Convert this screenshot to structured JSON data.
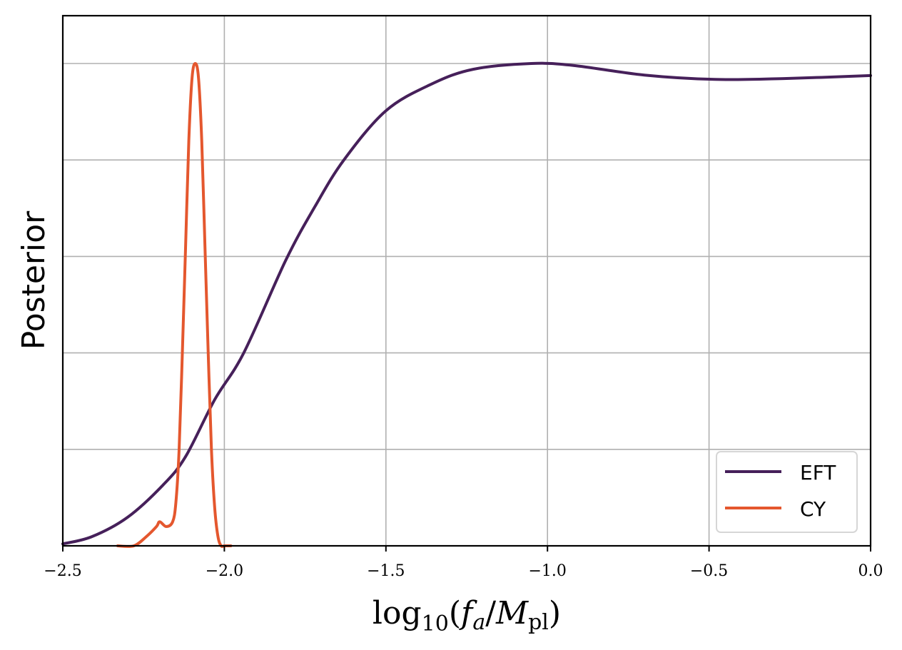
{
  "chart_data": {
    "type": "line",
    "title": "",
    "xlabel": "log10(f_a/M_pl)",
    "xlabel_parts": {
      "base": "log",
      "sub1": "10",
      "open": "(",
      "f": "f",
      "fsub": "a",
      "slash": "/",
      "M": "M",
      "Msub": "pl",
      "close": ")"
    },
    "ylabel": "Posterior",
    "xlim": [
      -2.5,
      0.0
    ],
    "ylim": [
      0,
      1.1
    ],
    "x_ticks": [
      -2.5,
      -2.0,
      -1.5,
      -1.0,
      -0.5,
      0.0
    ],
    "x_tick_labels": [
      "−2.5",
      "−2.0",
      "−1.5",
      "−1.0",
      "−0.5",
      "0.0"
    ],
    "y_ticks": [
      0.2,
      0.4,
      0.6,
      0.8,
      1.0
    ],
    "y_tick_labels": [],
    "grid": true,
    "legend_position": "lower right",
    "series": [
      {
        "name": "EFT",
        "color": "#46205a",
        "x": [
          -2.5,
          -2.41,
          -2.3,
          -2.19,
          -2.12,
          -2.03,
          -1.94,
          -1.81,
          -1.72,
          -1.63,
          -1.5,
          -1.36,
          -1.23,
          -1.05,
          -0.92,
          -0.7,
          -0.48,
          -0.26,
          0.0
        ],
        "y": [
          0.004,
          0.019,
          0.059,
          0.126,
          0.185,
          0.303,
          0.4,
          0.592,
          0.703,
          0.8,
          0.902,
          0.957,
          0.988,
          1.0,
          0.996,
          0.976,
          0.967,
          0.969,
          0.975
        ]
      },
      {
        "name": "CY",
        "color": "#e4572e",
        "x": [
          -2.33,
          -2.28,
          -2.24,
          -2.21,
          -2.2,
          -2.18,
          -2.16,
          -2.15,
          -2.14,
          -2.13,
          -2.12,
          -2.11,
          -2.1,
          -2.09,
          -2.08,
          -2.07,
          -2.06,
          -2.05,
          -2.04,
          -2.03,
          -2.02,
          -2.01,
          -2.0,
          -1.98
        ],
        "y": [
          0.0,
          0.0,
          0.02,
          0.04,
          0.05,
          0.04,
          0.05,
          0.09,
          0.2,
          0.4,
          0.62,
          0.84,
          0.97,
          1.0,
          0.97,
          0.84,
          0.62,
          0.4,
          0.2,
          0.08,
          0.02,
          0.0,
          0.0,
          0.0
        ]
      }
    ]
  },
  "legend": {
    "items": [
      {
        "label": "EFT",
        "color": "#46205a"
      },
      {
        "label": "CY",
        "color": "#e4572e"
      }
    ]
  }
}
